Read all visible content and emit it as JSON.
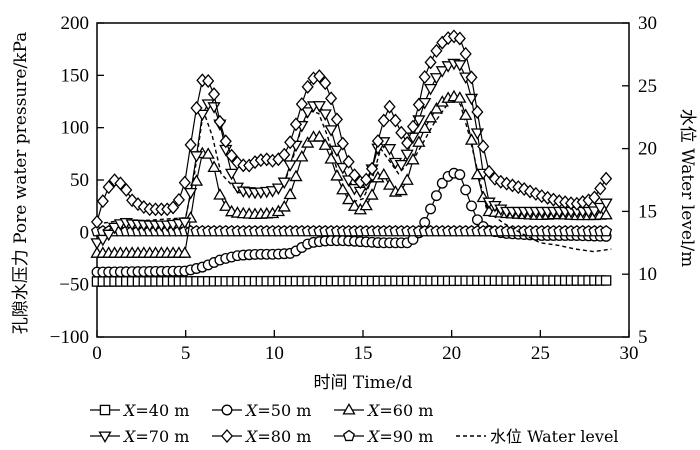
{
  "chart_data": {
    "type": "line",
    "xlabel": "时间 Time/d",
    "ylabel": "孔隙水压力 Pore water pressure/kPa",
    "y2label": "水位 Water level/m",
    "xlim": [
      0,
      30
    ],
    "ylim": [
      -100,
      200
    ],
    "y2lim": [
      5,
      30
    ],
    "xticks": [
      "0",
      "5",
      "10",
      "15",
      "20",
      "25",
      "30"
    ],
    "yticks": [
      "200",
      "150",
      "100",
      "50",
      "0",
      "-50",
      "-100"
    ],
    "y2ticks": [
      "30",
      "25",
      "20",
      "15",
      "10",
      "5"
    ],
    "grid": false,
    "legend_position": "bottom",
    "series": [
      {
        "name": "X=40 m",
        "var": "X",
        "rest": "=40 m",
        "marker": "square",
        "axis": "left",
        "x": [
          0,
          29
        ],
        "y": [
          -47,
          -46
        ]
      },
      {
        "name": "X=50 m",
        "var": "X",
        "rest": "=50 m",
        "marker": "circle",
        "axis": "left",
        "x": [
          0,
          5,
          6,
          7,
          8,
          9,
          10,
          11,
          12,
          13,
          14,
          15,
          16,
          17,
          17.5,
          18,
          18.5,
          19,
          19.5,
          20,
          20.5,
          21,
          21.5,
          22,
          23,
          25,
          27,
          29
        ],
        "y": [
          -38,
          -37,
          -33,
          -26,
          -22,
          -21,
          -21,
          -20,
          -10,
          -8,
          -8,
          -9,
          -10,
          -10,
          -10,
          -5,
          10,
          30,
          48,
          57,
          55,
          30,
          10,
          2,
          -1,
          -3,
          -3,
          -4
        ]
      },
      {
        "name": "X=60 m",
        "var": "X",
        "rest": "=60 m",
        "marker": "triangle-up",
        "axis": "left",
        "x": [
          0,
          5,
          5.5,
          6,
          6.5,
          7,
          7.5,
          8,
          9,
          10,
          10.5,
          11,
          11.5,
          12,
          12.5,
          13,
          13.5,
          14,
          14.5,
          15,
          15.5,
          16,
          16.5,
          17,
          17.5,
          18,
          18.5,
          19,
          19.5,
          20,
          20.5,
          21,
          21.5,
          22,
          23,
          24,
          25,
          26,
          27,
          28,
          29
        ],
        "y": [
          -20,
          -20,
          40,
          80,
          70,
          30,
          20,
          18,
          17,
          18,
          22,
          40,
          70,
          90,
          92,
          80,
          55,
          35,
          25,
          20,
          35,
          60,
          45,
          35,
          50,
          80,
          100,
          115,
          125,
          130,
          128,
          100,
          50,
          20,
          18,
          17,
          16,
          17,
          16,
          16,
          17
        ]
      },
      {
        "name": "X=70 m",
        "var": "X",
        "rest": "=70 m",
        "marker": "triangle-down",
        "axis": "left",
        "x": [
          0,
          0.5,
          1,
          1.5,
          2,
          3,
          4,
          4.5,
          5,
          5.5,
          6,
          6.5,
          7,
          7.5,
          8,
          9,
          10,
          10.5,
          11,
          11.5,
          12,
          12.5,
          13,
          13.5,
          14,
          14.5,
          15,
          15.5,
          16,
          16.5,
          17,
          17.5,
          18,
          18.5,
          19,
          19.5,
          20,
          20.5,
          21,
          21.5,
          22,
          23,
          24,
          25,
          26,
          27,
          28,
          28.5,
          29
        ],
        "y": [
          -10,
          -5,
          5,
          10,
          8,
          7,
          7,
          8,
          10,
          60,
          120,
          125,
          100,
          60,
          40,
          38,
          40,
          45,
          70,
          100,
          120,
          122,
          110,
          80,
          55,
          42,
          38,
          60,
          90,
          80,
          60,
          75,
          100,
          125,
          145,
          155,
          162,
          160,
          140,
          90,
          30,
          20,
          20,
          20,
          20,
          20,
          20,
          25,
          32
        ]
      },
      {
        "name": "X=80 m",
        "var": "X",
        "rest": "=80 m",
        "marker": "diamond",
        "axis": "left",
        "x": [
          0,
          0.5,
          1,
          1.5,
          2,
          2.5,
          3,
          4,
          4.5,
          5,
          5.5,
          6,
          6.5,
          7,
          7.5,
          8,
          8.5,
          9,
          9.5,
          10,
          10.5,
          11,
          11.5,
          12,
          12.5,
          13,
          13.5,
          14,
          14.5,
          15,
          15.5,
          16,
          16.5,
          17,
          17.5,
          18,
          18.5,
          19,
          19.5,
          20,
          20.5,
          21,
          21.5,
          22,
          22.5,
          23,
          24,
          25,
          26,
          27,
          28,
          28.5,
          29
        ],
        "y": [
          10,
          40,
          50,
          45,
          30,
          25,
          22,
          22,
          25,
          50,
          110,
          150,
          140,
          100,
          75,
          65,
          63,
          68,
          70,
          68,
          72,
          90,
          120,
          145,
          150,
          140,
          110,
          75,
          55,
          45,
          60,
          100,
          120,
          100,
          85,
          110,
          150,
          170,
          182,
          188,
          185,
          160,
          110,
          60,
          50,
          47,
          42,
          35,
          30,
          27,
          32,
          45,
          60
        ]
      },
      {
        "name": "X=90 m",
        "var": "X",
        "rest": "=90 m",
        "marker": "pentagon",
        "axis": "left",
        "x": [
          0,
          29
        ],
        "y": [
          1,
          1
        ]
      },
      {
        "name": "水位 Water level",
        "marker": "none",
        "style": "dashed",
        "axis": "right",
        "x": [
          0,
          1,
          3,
          5,
          5.5,
          6,
          6.5,
          7,
          8,
          9,
          10,
          10.5,
          11,
          11.5,
          12,
          12.5,
          13,
          13.5,
          14,
          14.5,
          15,
          15.5,
          16,
          16.5,
          17,
          18,
          19,
          20,
          20.5,
          21,
          22,
          23,
          24,
          25,
          26,
          27,
          28,
          29
        ],
        "y": [
          14,
          14.2,
          14.3,
          14.5,
          18,
          23,
          21,
          18,
          16.5,
          16.6,
          16.8,
          17,
          19,
          21.5,
          23,
          22.8,
          21,
          18.5,
          16.5,
          15.8,
          16,
          17.5,
          20,
          19,
          18,
          19.5,
          22,
          24,
          23.5,
          21,
          15,
          14,
          13.2,
          12.5,
          12.3,
          12,
          11.8,
          12
        ]
      }
    ]
  }
}
